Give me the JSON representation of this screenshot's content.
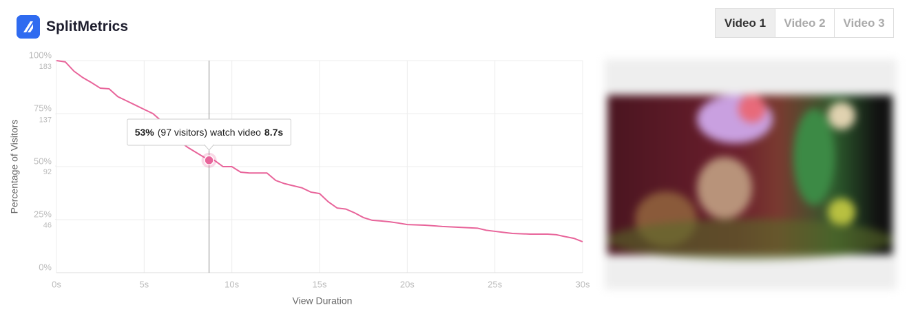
{
  "header": {
    "brand": "SplitMetrics"
  },
  "tabs": [
    {
      "label": "Video 1",
      "active": true
    },
    {
      "label": "Video 2",
      "active": false
    },
    {
      "label": "Video 3",
      "active": false
    }
  ],
  "chart_data": {
    "type": "line",
    "x_label": "View Duration",
    "y_label": "Percentage of Visitors",
    "x": [
      0,
      0.5,
      1,
      1.5,
      2,
      2.5,
      3,
      3.5,
      4,
      4.5,
      5,
      5.5,
      6,
      6.5,
      7,
      7.5,
      8,
      8.7,
      9,
      9.5,
      10,
      10.5,
      11,
      12,
      12.5,
      13,
      13.5,
      14,
      14.5,
      15,
      15.5,
      16,
      16.5,
      17,
      17.5,
      18,
      18.5,
      19,
      19.5,
      20,
      21,
      22,
      23,
      24,
      24.5,
      25,
      25.5,
      26,
      27,
      28,
      28.5,
      29,
      29.5,
      30
    ],
    "series": [
      {
        "name": "Visitors",
        "color": "#e8649a",
        "values": [
          100,
          99.4,
          95,
          92,
          89.6,
          87,
          86.7,
          83,
          81,
          79,
          77,
          75,
          71.4,
          65,
          62,
          59,
          56.5,
          53,
          53,
          50,
          50,
          47.4,
          47,
          47,
          43.5,
          42,
          41,
          40,
          38,
          37.3,
          33.4,
          30.5,
          30,
          28.2,
          26,
          24.7,
          24.4,
          24,
          23.4,
          22.7,
          22.4,
          21.8,
          21.4,
          21,
          20,
          19.5,
          19,
          18.5,
          18.2,
          18.2,
          17.9,
          17,
          16.2,
          14.6
        ]
      }
    ],
    "xlim": [
      0,
      30
    ],
    "xticks": [
      {
        "value": 0,
        "label": "0s"
      },
      {
        "value": 5,
        "label": "5s"
      },
      {
        "value": 10,
        "label": "10s"
      },
      {
        "value": 15,
        "label": "15s"
      },
      {
        "value": 20,
        "label": "20s"
      },
      {
        "value": 25,
        "label": "25s"
      },
      {
        "value": 30,
        "label": "30s"
      }
    ],
    "ylim": [
      0,
      100
    ],
    "yticks": [
      {
        "value": 0,
        "label": "0%"
      },
      {
        "value": 25,
        "label": "25%"
      },
      {
        "value": 50,
        "label": "50%"
      },
      {
        "value": 75,
        "label": "75%"
      },
      {
        "value": 100,
        "label": "100%"
      }
    ],
    "y2lim": [
      0,
      183
    ],
    "y2ticks": [
      46,
      92,
      137,
      183
    ],
    "grid": true,
    "highlight": {
      "x": 8.7,
      "y": 53,
      "x_label": "8.7s",
      "y_label": "53%",
      "text": "(97 visitors) watch video"
    }
  }
}
